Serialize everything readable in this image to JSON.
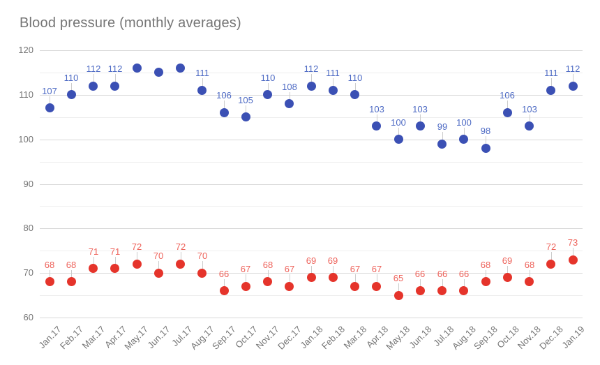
{
  "chart_data": {
    "type": "scatter",
    "title": "Blood pressure (monthly averages)",
    "title_color": "#757575",
    "legend": "none",
    "categories": [
      "Jan.17",
      "Feb.17",
      "Mar.17",
      "Apr.17",
      "May.17",
      "Jun.17",
      "Jul.17",
      "Aug.17",
      "Sep.17",
      "Oct.17",
      "Nov.17",
      "Dec.17",
      "Jan.18",
      "Feb.18",
      "Mar.18",
      "Apr.18",
      "May.18",
      "Jun.18",
      "Jul.18",
      "Aug.18",
      "Sep.18",
      "Oct.18",
      "Nov.18",
      "Dec.18",
      "Jan.19"
    ],
    "series": [
      {
        "name": "blue",
        "point_color": "#3b50b4",
        "label_color": "#4d6ac4",
        "values": [
          107,
          110,
          112,
          112,
          116,
          115,
          116,
          111,
          106,
          105,
          110,
          108,
          112,
          111,
          110,
          103,
          100,
          103,
          99,
          100,
          98,
          106,
          103,
          111,
          112
        ],
        "labels": [
          "107",
          "110",
          "112",
          "112",
          null,
          null,
          null,
          "111",
          "106",
          "105",
          "110",
          "108",
          "112",
          "111",
          "110",
          "103",
          "100",
          "103",
          "99",
          "100",
          "98",
          "106",
          "103",
          "111",
          "112"
        ]
      },
      {
        "name": "red",
        "point_color": "#e5342b",
        "label_color": "#ee635b",
        "values": [
          68,
          68,
          71,
          71,
          72,
          70,
          72,
          70,
          66,
          67,
          68,
          67,
          69,
          69,
          67,
          67,
          65,
          66,
          66,
          66,
          68,
          69,
          68,
          72,
          73
        ],
        "labels": [
          "68",
          "68",
          "71",
          "71",
          "72",
          "70",
          "72",
          "70",
          "66",
          "67",
          "68",
          "67",
          "69",
          "69",
          "67",
          "67",
          "65",
          "66",
          "66",
          "66",
          "68",
          "69",
          "68",
          "72",
          "73"
        ]
      }
    ],
    "ylim": [
      60,
      120
    ],
    "y_ticks": [
      60,
      70,
      80,
      90,
      100,
      110,
      120
    ],
    "y_minor_ticks": [
      65,
      75,
      85,
      95,
      105,
      115
    ],
    "x_axis_label_rotation": -45,
    "axis_label_color": "#757575",
    "grid": {
      "major_color": "#d9d9d9",
      "minor_color": "#eeeeee"
    },
    "stem_color": "#cccccc",
    "background_color": "#ffffff"
  }
}
